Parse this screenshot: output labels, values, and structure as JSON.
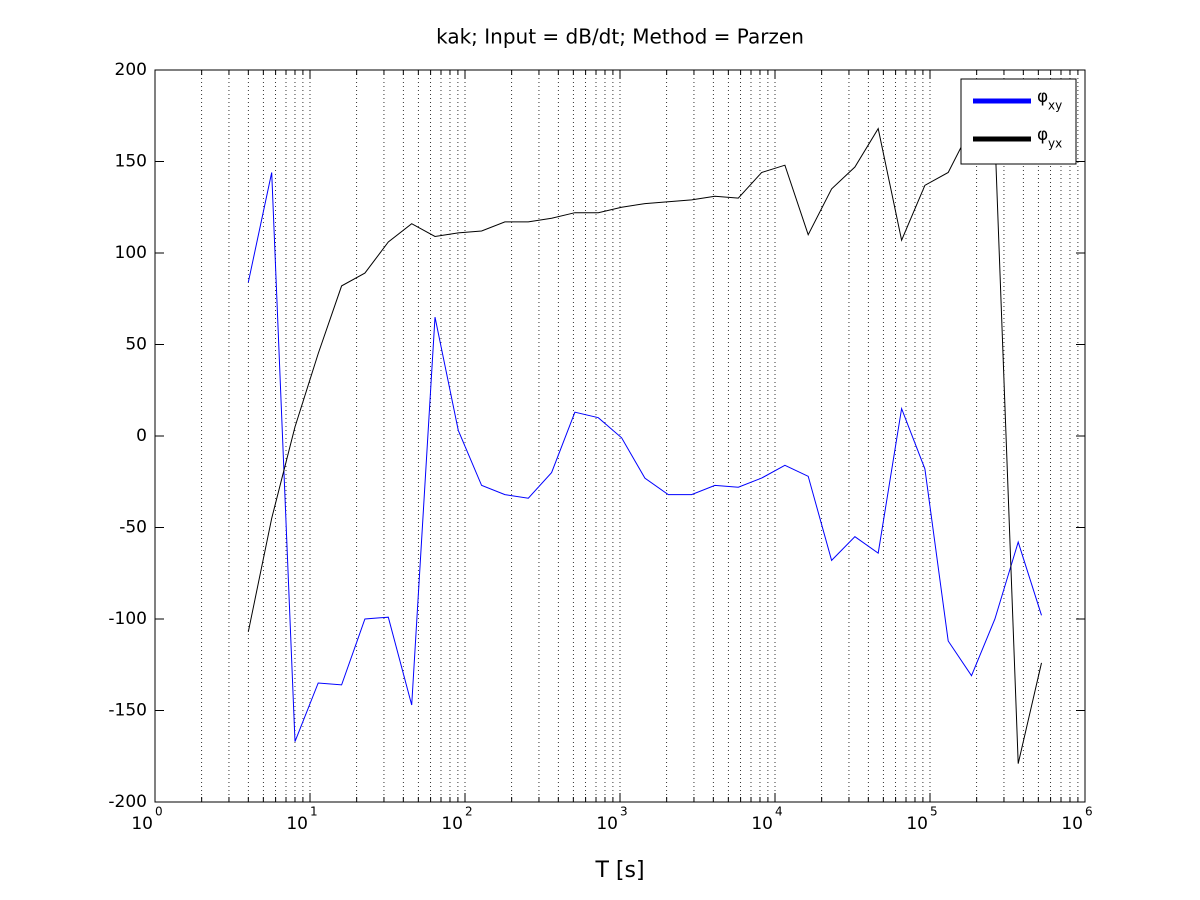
{
  "chart_data": {
    "type": "line",
    "title": "kak; Input = dB/dt; Method = Parzen",
    "x_label": "T [s]",
    "x": [
      4,
      5.66,
      8,
      11.3,
      16,
      22.6,
      32,
      45.3,
      64,
      90.5,
      128,
      181,
      256,
      362,
      512,
      724,
      1024,
      1448,
      2048,
      2896,
      4096,
      5793,
      8192,
      11585,
      16384,
      23170,
      32768,
      46341,
      65536,
      92682,
      131072,
      185364,
      262144,
      370728,
      524288
    ],
    "series": [
      {
        "name": "φ",
        "subscript": "xy",
        "color": "#0000ff",
        "values": [
          84,
          144,
          -167,
          -135,
          -136,
          -100,
          -99,
          -147,
          65,
          3,
          -27,
          -32,
          -34,
          -20,
          13,
          10,
          -1,
          -23,
          -32,
          -32,
          -27,
          -28,
          -23,
          -16,
          -22,
          -68,
          -55,
          -64,
          15,
          -18,
          -112,
          -131,
          -100,
          -58,
          -98
        ]
      },
      {
        "name": "φ",
        "subscript": "yx",
        "color": "#000000",
        "values": [
          -107,
          -45,
          5,
          45,
          82,
          89,
          106,
          116,
          109,
          111,
          112,
          117,
          117,
          119,
          122,
          122,
          125,
          127,
          128,
          129,
          131,
          130,
          144,
          148,
          110,
          135,
          147,
          168,
          107,
          137,
          144,
          169,
          164,
          -179,
          -124
        ]
      }
    ],
    "xscale": "log",
    "xlim": [
      1,
      1000000
    ],
    "xticks": [
      {
        "value": 1,
        "label": "10",
        "sup": "0"
      },
      {
        "value": 10,
        "label": "10",
        "sup": "1"
      },
      {
        "value": 100,
        "label": "10",
        "sup": "2"
      },
      {
        "value": 1000,
        "label": "10",
        "sup": "3"
      },
      {
        "value": 10000,
        "label": "10",
        "sup": "4"
      },
      {
        "value": 100000,
        "label": "10",
        "sup": "5"
      },
      {
        "value": 1000000,
        "label": "10",
        "sup": "6"
      }
    ],
    "ylim": [
      -200,
      200
    ],
    "yticks": [
      -200,
      -150,
      -100,
      -50,
      0,
      50,
      100,
      150,
      200
    ],
    "xgrid": true,
    "xminorgrid": true,
    "ygrid": false,
    "legend": "northeast"
  }
}
